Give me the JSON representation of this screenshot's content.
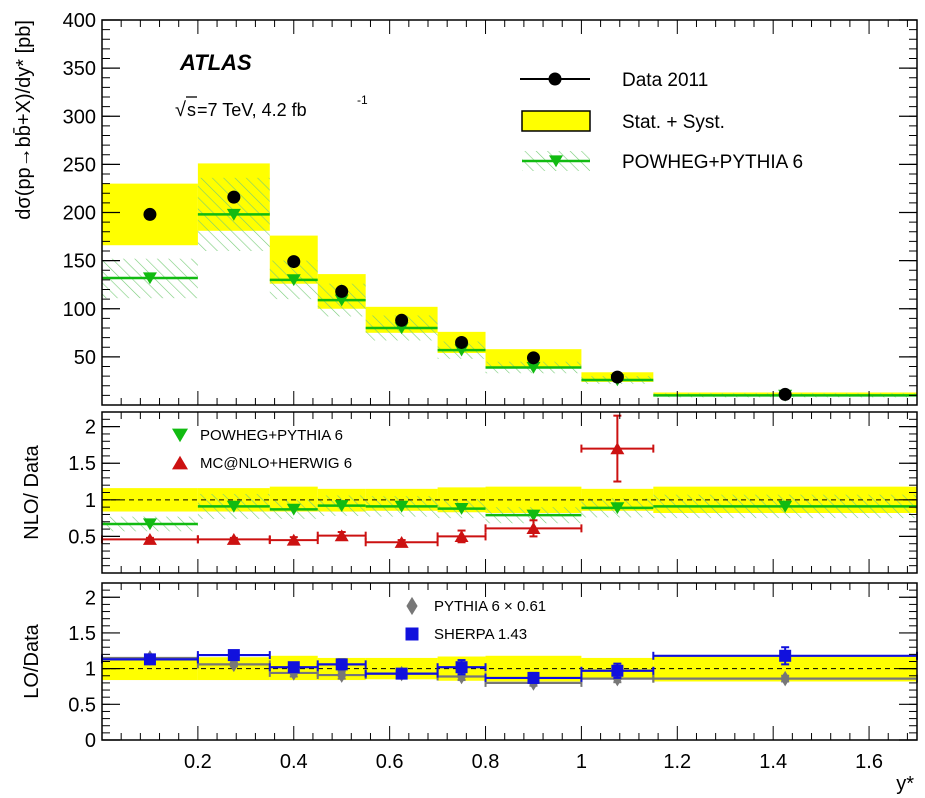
{
  "experiment_label": "ATLAS",
  "energy_label": {
    "sqrt": "s",
    "energy": "=7 TeV, 4.2 fb",
    "exponent": "-1"
  },
  "xlabel": "y*",
  "colors": {
    "band": "#ffff00",
    "data": "#000000",
    "powheg": "#11bb11",
    "powheg_hatch": "#77cc77",
    "mcatnlo": "#cc1111",
    "pythia": "#777777",
    "sherpa": "#1111dd"
  },
  "chart_data": [
    {
      "type": "scatter",
      "panel": "top",
      "ylabel": "dσ(pp→bb̄+X)/dy* [pb]",
      "ylim": [
        0,
        400
      ],
      "xlim": [
        0,
        1.7
      ],
      "yticks": [
        50,
        100,
        150,
        200,
        250,
        300,
        350,
        400
      ],
      "xticks": [
        0.2,
        0.4,
        0.6,
        0.8,
        1.0,
        1.2,
        1.4,
        1.6
      ],
      "legend": {
        "data": "Data 2011",
        "band": "Stat. + Syst.",
        "powheg": "POWHEG+PYTHIA 6"
      },
      "legend_position": "top-right",
      "bins": [
        [
          0.0,
          0.2
        ],
        [
          0.2,
          0.35
        ],
        [
          0.35,
          0.45
        ],
        [
          0.45,
          0.55
        ],
        [
          0.55,
          0.7
        ],
        [
          0.7,
          0.8
        ],
        [
          0.8,
          1.0
        ],
        [
          1.0,
          1.15
        ],
        [
          1.15,
          1.7
        ]
      ],
      "series": [
        {
          "name": "Data 2011",
          "x": [
            0.1,
            0.275,
            0.4,
            0.5,
            0.625,
            0.75,
            0.9,
            1.075,
            1.425
          ],
          "y": [
            198,
            216,
            149,
            118,
            88,
            65,
            49,
            29,
            11
          ]
        },
        {
          "name": "Stat. + Syst.",
          "low": [
            166,
            181,
            126,
            100,
            75,
            54,
            40,
            24,
            9
          ],
          "high": [
            230,
            251,
            176,
            136,
            102,
            76,
            58,
            34,
            13
          ]
        },
        {
          "name": "POWHEG+PYTHIA 6",
          "y": [
            132,
            198,
            130,
            109,
            80,
            57,
            39,
            26,
            10
          ],
          "low": [
            111,
            160,
            110,
            92,
            67,
            48,
            33,
            22,
            8
          ],
          "high": [
            152,
            236,
            150,
            126,
            93,
            66,
            45,
            30,
            12
          ]
        }
      ]
    },
    {
      "type": "scatter",
      "panel": "middle",
      "ylabel": "NLO/ Data",
      "ylim": [
        0,
        2.2
      ],
      "yticks": [
        0.5,
        1,
        1.5,
        2
      ],
      "ytick_labels": [
        "0.5",
        "1",
        "1.5",
        "2"
      ],
      "reference_line": 1,
      "legend": {
        "powheg": "POWHEG+PYTHIA 6",
        "mcatnlo": "MC@NLO+HERWIG 6"
      },
      "legend_position": "top-left",
      "series": [
        {
          "name": "Stat. + Syst.",
          "low": [
            0.84,
            0.84,
            0.84,
            0.84,
            0.85,
            0.83,
            0.82,
            0.85,
            0.82
          ],
          "high": [
            1.16,
            1.16,
            1.18,
            1.15,
            1.15,
            1.17,
            1.18,
            1.15,
            1.18
          ]
        },
        {
          "name": "POWHEG+PYTHIA 6",
          "y": [
            0.67,
            0.91,
            0.87,
            0.92,
            0.91,
            0.88,
            0.79,
            0.89,
            0.91
          ],
          "low": [
            0.57,
            0.74,
            0.74,
            0.78,
            0.77,
            0.75,
            0.68,
            0.76,
            0.75
          ],
          "high": [
            0.77,
            1.08,
            1.0,
            1.06,
            1.05,
            1.01,
            0.9,
            1.02,
            1.07
          ]
        },
        {
          "name": "MC@NLO+HERWIG 6",
          "y": [
            0.46,
            0.46,
            0.45,
            0.51,
            0.42,
            0.5,
            0.61,
            1.7,
            null
          ],
          "err": [
            0.02,
            0.02,
            0.04,
            0.05,
            0.03,
            0.08,
            0.11,
            0.45,
            null
          ]
        }
      ]
    },
    {
      "type": "scatter",
      "panel": "bottom",
      "ylabel": "LO/Data",
      "ylim": [
        0,
        2.2
      ],
      "yticks": [
        0,
        0.5,
        1,
        1.5,
        2
      ],
      "ytick_labels": [
        "0",
        "0.5",
        "1",
        "1.5",
        "2"
      ],
      "reference_line": 1,
      "legend": {
        "pythia": "PYTHIA 6 × 0.61",
        "sherpa": "SHERPA 1.43"
      },
      "legend_position": "top-center",
      "series": [
        {
          "name": "Stat. + Syst.",
          "low": [
            0.84,
            0.84,
            0.84,
            0.84,
            0.85,
            0.83,
            0.82,
            0.85,
            0.82
          ],
          "high": [
            1.16,
            1.16,
            1.18,
            1.15,
            1.15,
            1.17,
            1.18,
            1.15,
            1.18
          ]
        },
        {
          "name": "PYTHIA 6 × 0.61",
          "y": [
            1.15,
            1.06,
            0.94,
            0.91,
            0.93,
            0.89,
            0.8,
            0.86,
            0.86
          ],
          "err": [
            0.03,
            0.03,
            0.05,
            0.05,
            0.04,
            0.05,
            0.04,
            0.05,
            0.04
          ]
        },
        {
          "name": "SHERPA 1.43",
          "y": [
            1.13,
            1.19,
            1.02,
            1.06,
            0.93,
            1.02,
            0.87,
            0.97,
            1.18
          ],
          "err": [
            0.06,
            0.05,
            0.06,
            0.07,
            0.05,
            0.1,
            0.07,
            0.1,
            0.12
          ]
        }
      ]
    }
  ]
}
